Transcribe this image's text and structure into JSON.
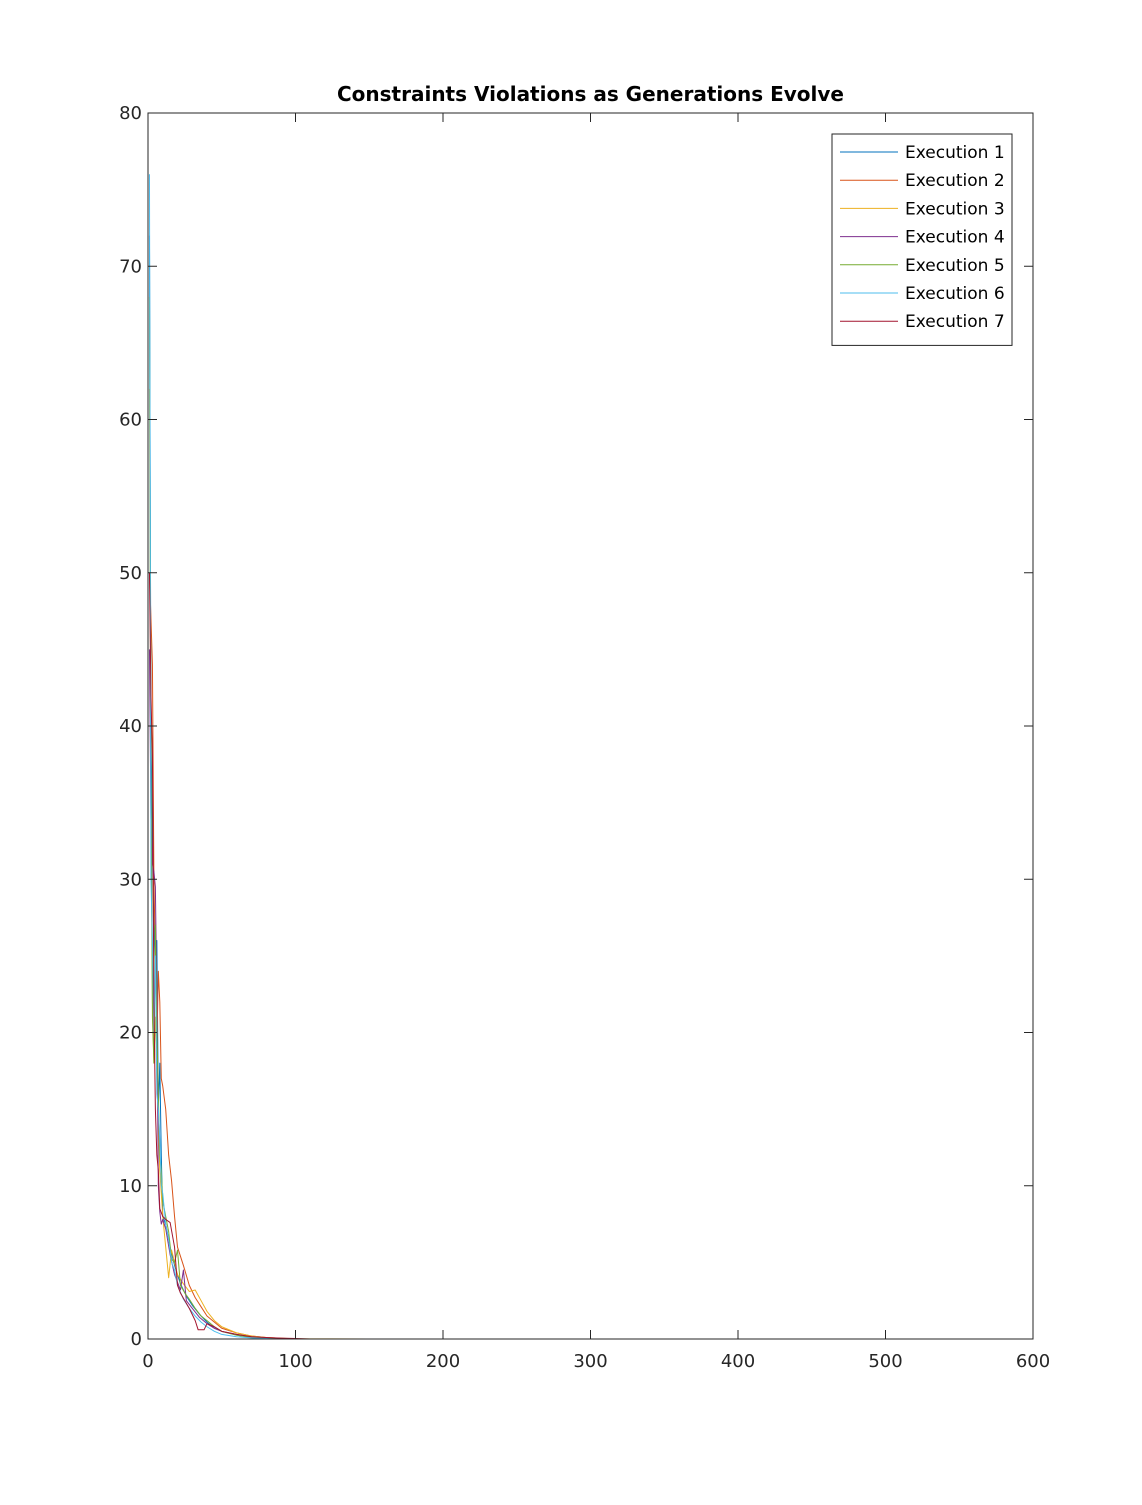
{
  "chart_data": {
    "type": "line",
    "title": "Constraints Violations as Generations Evolve",
    "xlabel": "",
    "ylabel": "",
    "xlim": [
      0,
      600
    ],
    "ylim": [
      0,
      80
    ],
    "xticks": [
      0,
      100,
      200,
      300,
      400,
      500,
      600
    ],
    "yticks": [
      0,
      10,
      20,
      30,
      40,
      50,
      60,
      70,
      80
    ],
    "grid": false,
    "legend_position": "top-right",
    "series": [
      {
        "name": "Execution 1",
        "color": "#0072BD",
        "x": [
          1,
          2,
          3,
          4,
          5,
          6,
          7,
          8,
          9,
          10,
          12,
          15,
          18,
          22,
          26,
          30,
          35,
          40,
          45,
          50,
          60,
          70,
          80,
          90,
          100,
          150,
          300,
          600
        ],
        "y": [
          72,
          40,
          32,
          27,
          24,
          26,
          15,
          18,
          12,
          8,
          7.5,
          6,
          4.8,
          3.6,
          2.8,
          2.2,
          1.6,
          1.1,
          0.7,
          0.5,
          0.25,
          0.1,
          0.05,
          0.02,
          0,
          0,
          0,
          0
        ]
      },
      {
        "name": "Execution 2",
        "color": "#D95319",
        "x": [
          1,
          2,
          3,
          4,
          5,
          6,
          7,
          8,
          9,
          10,
          12,
          14,
          16,
          18,
          20,
          24,
          28,
          32,
          36,
          40,
          45,
          50,
          60,
          70,
          80,
          90,
          100,
          150,
          300,
          600
        ],
        "y": [
          50,
          47,
          44,
          30,
          25,
          19,
          24,
          22,
          17,
          16.5,
          15,
          12,
          10.3,
          8,
          6,
          4.8,
          3.5,
          2.7,
          2.1,
          1.5,
          1.1,
          0.7,
          0.4,
          0.2,
          0.1,
          0.05,
          0,
          0,
          0,
          0
        ]
      },
      {
        "name": "Execution 3",
        "color": "#EDB120",
        "x": [
          1,
          2,
          3,
          4,
          5,
          6,
          7,
          8,
          10,
          12,
          14,
          16,
          18,
          20,
          24,
          28,
          32,
          36,
          40,
          45,
          50,
          60,
          70,
          80,
          90,
          100,
          150,
          300,
          600
        ],
        "y": [
          62,
          35,
          22,
          18,
          21,
          17,
          14,
          11,
          8,
          6,
          4,
          5.8,
          5,
          4.2,
          3.6,
          3.1,
          3.2,
          2.5,
          1.8,
          1.2,
          0.8,
          0.4,
          0.2,
          0.1,
          0.05,
          0.02,
          0,
          0,
          0
        ]
      },
      {
        "name": "Execution 4",
        "color": "#7E2F8E",
        "x": [
          1,
          2,
          3,
          4,
          5,
          6,
          7,
          8,
          9,
          10,
          12,
          15,
          18,
          22,
          24,
          26,
          30,
          35,
          40,
          45,
          50,
          60,
          70,
          80,
          90,
          100,
          150,
          300,
          600
        ],
        "y": [
          45,
          34,
          31,
          30.5,
          29.5,
          22,
          10,
          8.3,
          7.5,
          7.8,
          7.2,
          5.5,
          4.2,
          3.2,
          4.5,
          2.5,
          2.0,
          1.4,
          1.0,
          0.7,
          0.5,
          0.3,
          0.15,
          0.08,
          0.03,
          0,
          0,
          0,
          0
        ]
      },
      {
        "name": "Execution 5",
        "color": "#77AC30",
        "x": [
          1,
          2,
          3,
          4,
          5,
          6,
          7,
          8,
          9,
          10,
          12,
          14,
          16,
          18,
          20,
          22,
          25,
          28,
          32,
          36,
          40,
          45,
          50,
          60,
          70,
          80,
          90,
          100,
          150,
          300,
          600
        ],
        "y": [
          68,
          38,
          21,
          18,
          27,
          20,
          16,
          12,
          11,
          9,
          8,
          7,
          5.2,
          5.0,
          5.8,
          3.5,
          3.0,
          2.6,
          2.0,
          1.5,
          1.2,
          0.8,
          0.5,
          0.25,
          0.1,
          0.05,
          0.02,
          0,
          0,
          0,
          0
        ]
      },
      {
        "name": "Execution 6",
        "color": "#4DBEEE",
        "x": [
          1,
          2,
          3,
          4,
          5,
          6,
          7,
          8,
          9,
          10,
          12,
          14,
          16,
          18,
          20,
          24,
          28,
          32,
          36,
          40,
          45,
          50,
          60,
          70,
          80,
          90,
          100,
          150,
          300,
          600
        ],
        "y": [
          76,
          30,
          26,
          20,
          25,
          16,
          15,
          13,
          10,
          9.5,
          7.5,
          6.5,
          5.0,
          4.5,
          3.5,
          2.6,
          2.0,
          1.5,
          1.1,
          0.8,
          0.5,
          0.3,
          0.15,
          0.07,
          0.03,
          0.01,
          0,
          0,
          0,
          0
        ]
      },
      {
        "name": "Execution 7",
        "color": "#A2142F",
        "x": [
          1,
          2,
          3,
          4,
          5,
          6,
          7,
          8,
          10,
          12,
          15,
          18,
          20,
          22,
          25,
          28,
          32,
          34,
          38,
          40,
          45,
          50,
          60,
          70,
          80,
          90,
          100,
          110,
          150,
          300,
          600
        ],
        "y": [
          50,
          42,
          38,
          22,
          15,
          12,
          11,
          8.5,
          8.0,
          7.8,
          7.6,
          6.0,
          3.5,
          3.0,
          2.5,
          2.0,
          1.2,
          0.6,
          0.6,
          1.0,
          0.8,
          0.5,
          0.3,
          0.15,
          0.1,
          0.06,
          0.03,
          0,
          0,
          0,
          0
        ]
      }
    ]
  }
}
